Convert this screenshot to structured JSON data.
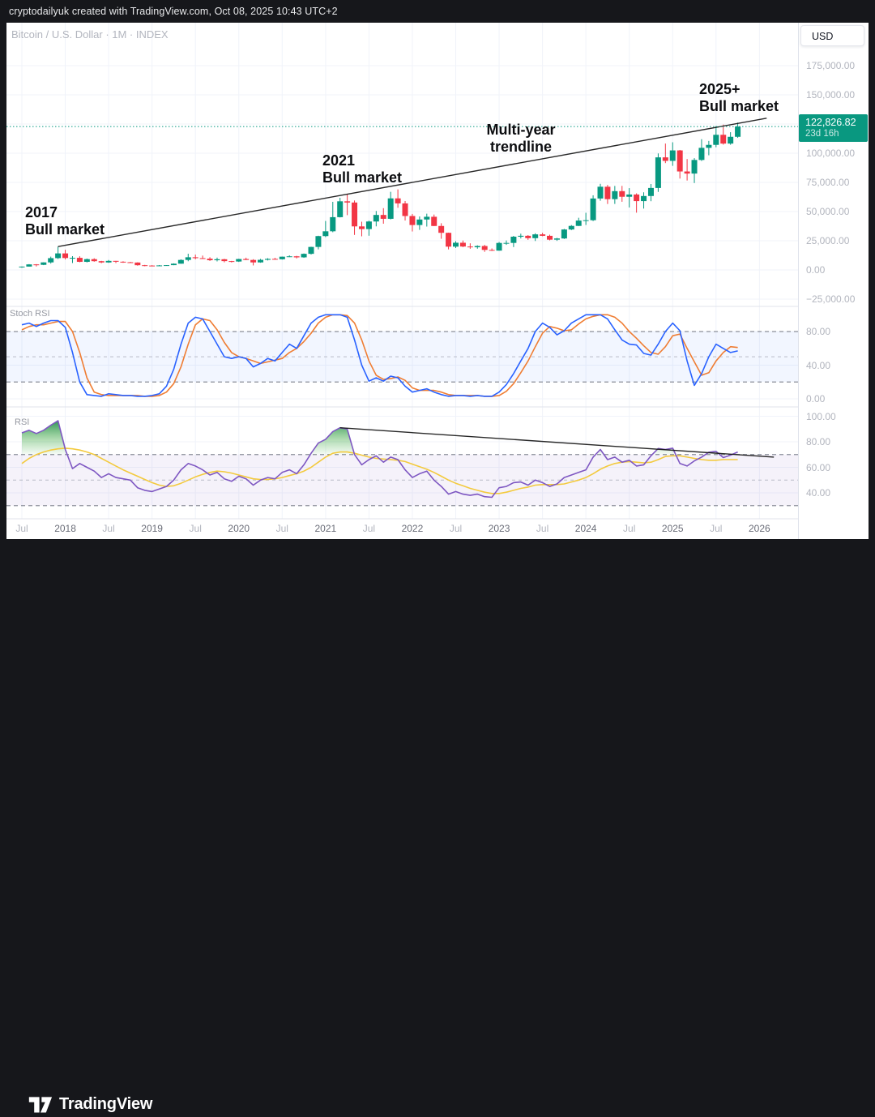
{
  "top_bar": {
    "attribution": "cryptodailyuk created with TradingView.com, Oct 08, 2025 10:43 UTC+2"
  },
  "header": {
    "symbol_title": "Bitcoin / U.S. Dollar · 1M · INDEX"
  },
  "price_scale": {
    "currency_button": "USD",
    "labels": [
      {
        "text": "175,000.00",
        "value": 175000
      },
      {
        "text": "150,000.00",
        "value": 150000
      },
      {
        "text": "100,000.00",
        "value": 100000
      },
      {
        "text": "75,000.00",
        "value": 75000
      },
      {
        "text": "50,000.00",
        "value": 50000
      },
      {
        "text": "25,000.00",
        "value": 25000
      },
      {
        "text": "0.00",
        "value": 0
      },
      {
        "text": "−25,000.00",
        "value": -25000
      }
    ],
    "price_badge": {
      "price": "122,826.82",
      "countdown": "23d 16h",
      "color": "#099880"
    }
  },
  "stoch_axis_labels": [
    {
      "text": "80.00",
      "value": 80
    },
    {
      "text": "40.00",
      "value": 40
    },
    {
      "text": "0.00",
      "value": 0
    }
  ],
  "rsi_axis_labels": [
    {
      "text": "100.00",
      "value": 100
    },
    {
      "text": "80.00",
      "value": 80
    },
    {
      "text": "60.00",
      "value": 60
    },
    {
      "text": "40.00",
      "value": 40
    }
  ],
  "time_axis": [
    {
      "text": "Jul",
      "m": 0,
      "major": false
    },
    {
      "text": "2018",
      "m": 6,
      "major": true
    },
    {
      "text": "Jul",
      "m": 12,
      "major": false
    },
    {
      "text": "2019",
      "m": 18,
      "major": true
    },
    {
      "text": "Jul",
      "m": 24,
      "major": false
    },
    {
      "text": "2020",
      "m": 30,
      "major": true
    },
    {
      "text": "Jul",
      "m": 36,
      "major": false
    },
    {
      "text": "2021",
      "m": 42,
      "major": true
    },
    {
      "text": "Jul",
      "m": 48,
      "major": false
    },
    {
      "text": "2022",
      "m": 54,
      "major": true
    },
    {
      "text": "Jul",
      "m": 60,
      "major": false
    },
    {
      "text": "2023",
      "m": 66,
      "major": true
    },
    {
      "text": "Jul",
      "m": 72,
      "major": false
    },
    {
      "text": "2024",
      "m": 78,
      "major": true
    },
    {
      "text": "Jul",
      "m": 84,
      "major": false
    },
    {
      "text": "2025",
      "m": 90,
      "major": true
    },
    {
      "text": "Jul",
      "m": 96,
      "major": false
    },
    {
      "text": "2026",
      "m": 102,
      "major": true
    }
  ],
  "annotations": {
    "a2017": {
      "line1": "2017",
      "line2": "Bull market"
    },
    "a2021": {
      "line1": "2021",
      "line2": "Bull market"
    },
    "amulti": {
      "line1": "Multi-year",
      "line2": "trendline"
    },
    "a2025": {
      "line1": "2025+",
      "line2": "Bull market"
    }
  },
  "panels": {
    "stoch_label": "Stoch RSI",
    "rsi_label": "RSI"
  },
  "footer": {
    "logo_text": "TradingView"
  },
  "colors": {
    "up": "#089981",
    "down": "#f23645",
    "stoch_k": "#2962ff",
    "stoch_d": "#ef7d33",
    "rsi_line": "#7e57c2",
    "rsi_ma": "#f3ca3e",
    "trendline": "#111111",
    "price_line": "#089981",
    "grid": "#f0f3fa",
    "separator": "#e0e3eb",
    "band_dash_strong": "#8a8e99",
    "band_dash_mid": "#b8bbc6",
    "stoch_band_fill": "rgba(41,98,255,0.06)",
    "rsi_band_fill": "rgba(126,87,194,0.08)"
  },
  "chart_data": {
    "type": "candlestick",
    "title": "Bitcoin / U.S. Dollar, 1 month, INDEX",
    "start_month": "2017-07",
    "end_month": "2025-10",
    "current_price": 122826.82,
    "price_axis_range": [
      -40000,
      195000
    ],
    "o": [
      2480,
      2875,
      4735,
      4360,
      6450,
      10100,
      14150,
      10200,
      10360,
      6940,
      9240,
      7500,
      6400,
      7750,
      7030,
      6600,
      6340,
      4040,
      3740,
      3460,
      3860,
      4100,
      5350,
      8560,
      10850,
      10090,
      9630,
      8310,
      9150,
      7560,
      7200,
      9350,
      8550,
      6440,
      8660,
      9460,
      9140,
      11350,
      11650,
      10780,
      13800,
      19700,
      28990,
      33110,
      45200,
      58800,
      57750,
      37300,
      35000,
      41500,
      47100,
      43800,
      61300,
      57000,
      46200,
      38480,
      43200,
      45540,
      37650,
      31790,
      19940,
      23300,
      20050,
      19420,
      20490,
      17160,
      16540,
      23130,
      23140,
      28470,
      29250,
      27220,
      30470,
      29230,
      25930,
      26960,
      34650,
      37710,
      42280,
      42580,
      61200,
      71280,
      60640,
      67500,
      62680,
      64620,
      58970,
      63330,
      70220,
      96440,
      93430,
      102400,
      84350,
      82550,
      94210,
      104600,
      107140,
      115760,
      108240,
      114050
    ],
    "h": [
      2920,
      4980,
      4980,
      6500,
      11400,
      19900,
      17250,
      11790,
      11700,
      9760,
      9990,
      7780,
      8500,
      7760,
      7410,
      6940,
      6540,
      4310,
      4060,
      4180,
      4130,
      5620,
      9060,
      13880,
      13130,
      12280,
      10890,
      10540,
      9520,
      7740,
      9550,
      10500,
      9180,
      9440,
      10070,
      10380,
      11440,
      12480,
      12050,
      14100,
      19860,
      29300,
      41950,
      58350,
      61800,
      64900,
      59500,
      41320,
      42200,
      50500,
      52920,
      66930,
      69000,
      59040,
      47980,
      45820,
      48190,
      47440,
      40000,
      31960,
      24670,
      25200,
      22800,
      21080,
      21470,
      18390,
      23960,
      25250,
      29180,
      31050,
      29820,
      31390,
      31800,
      30180,
      27480,
      35150,
      38410,
      44700,
      48970,
      63930,
      73800,
      72800,
      71950,
      71990,
      70080,
      65600,
      66500,
      73620,
      99800,
      108270,
      109360,
      102800,
      95000,
      95770,
      112000,
      110530,
      123230,
      124500,
      118000,
      126200
    ],
    "l": [
      1830,
      2840,
      2970,
      4110,
      5430,
      9380,
      9000,
      5920,
      6600,
      6430,
      7040,
      5780,
      6070,
      5880,
      6100,
      6200,
      3650,
      3150,
      3350,
      3350,
      3670,
      4060,
      5330,
      7450,
      9090,
      9350,
      7700,
      7300,
      6520,
      6430,
      6850,
      8410,
      3850,
      6160,
      8110,
      8830,
      8900,
      11000,
      9830,
      10380,
      13200,
      17600,
      28150,
      32320,
      44950,
      46930,
      30000,
      28800,
      29300,
      37330,
      39600,
      43280,
      53250,
      42330,
      32950,
      34300,
      37160,
      37600,
      26700,
      17600,
      18780,
      19520,
      18130,
      18190,
      15480,
      16260,
      16490,
      21450,
      19570,
      26950,
      25810,
      24800,
      28860,
      25350,
      24900,
      26540,
      34100,
      37610,
      38500,
      41880,
      59320,
      56500,
      56550,
      58400,
      53500,
      49050,
      52550,
      58870,
      66840,
      91530,
      89170,
      78260,
      76600,
      74440,
      93370,
      98240,
      105110,
      107360,
      107270,
      113160
    ],
    "c": [
      2875,
      4735,
      4360,
      6450,
      10100,
      14150,
      10200,
      10360,
      6940,
      9240,
      7500,
      6400,
      7750,
      7030,
      6600,
      6340,
      4040,
      3740,
      3460,
      3860,
      4100,
      5350,
      8560,
      10850,
      10090,
      9630,
      8310,
      9150,
      7560,
      7200,
      9350,
      8550,
      6440,
      8660,
      9460,
      9140,
      11350,
      11650,
      10780,
      13800,
      19700,
      28990,
      33110,
      45200,
      58800,
      57750,
      37300,
      35000,
      41500,
      47100,
      43800,
      61300,
      57000,
      46200,
      38480,
      43200,
      45540,
      37650,
      31790,
      19940,
      23300,
      20050,
      19420,
      20490,
      17160,
      16540,
      23130,
      23140,
      28470,
      29250,
      27220,
      30470,
      29230,
      25930,
      26960,
      34650,
      37710,
      42280,
      42580,
      61200,
      71280,
      60640,
      67500,
      62680,
      64620,
      58970,
      63330,
      70220,
      96440,
      93430,
      102400,
      84350,
      82550,
      94210,
      104600,
      107140,
      115760,
      108240,
      114050,
      122827
    ],
    "stoch_rsi": {
      "levels": [
        80,
        50,
        20
      ],
      "k": [
        88,
        90,
        86,
        90,
        93,
        93,
        85,
        55,
        20,
        5,
        4,
        3,
        6,
        5,
        4,
        4,
        3,
        3,
        4,
        6,
        15,
        35,
        65,
        90,
        97,
        95,
        80,
        65,
        50,
        48,
        50,
        48,
        38,
        42,
        48,
        45,
        55,
        65,
        60,
        75,
        90,
        97,
        100,
        100,
        100,
        97,
        70,
        40,
        21,
        25,
        21,
        27,
        25,
        15,
        8,
        10,
        12,
        8,
        5,
        3,
        4,
        4,
        3,
        4,
        3,
        3,
        8,
        17,
        30,
        45,
        60,
        80,
        90,
        85,
        76,
        81,
        90,
        95,
        100,
        100,
        100,
        95,
        82,
        70,
        65,
        64,
        54,
        52,
        65,
        80,
        90,
        81,
        45,
        16,
        30,
        50,
        65,
        60,
        55,
        57
      ],
      "d": [
        82,
        86,
        88,
        88,
        90,
        92,
        92,
        80,
        55,
        25,
        8,
        5,
        4,
        4,
        4,
        4,
        4,
        3,
        3,
        4,
        8,
        18,
        38,
        65,
        88,
        95,
        93,
        82,
        67,
        55,
        50,
        48,
        45,
        42,
        44,
        46,
        48,
        55,
        60,
        68,
        78,
        90,
        97,
        100,
        100,
        99,
        90,
        70,
        45,
        28,
        23,
        24,
        26,
        22,
        13,
        10,
        10,
        10,
        8,
        5,
        4,
        4,
        4,
        4,
        3,
        3,
        4,
        9,
        18,
        31,
        45,
        62,
        78,
        86,
        84,
        81,
        82,
        89,
        95,
        98,
        100,
        100,
        97,
        90,
        80,
        72,
        63,
        55,
        53,
        62,
        75,
        77,
        60,
        44,
        28,
        31,
        45,
        55,
        62,
        61
      ]
    },
    "rsi": {
      "levels": [
        70,
        50,
        30
      ],
      "overbought_fill_above": 70,
      "values": [
        87,
        89,
        86.5,
        89,
        93,
        96.5,
        74,
        59,
        63,
        60,
        57,
        52,
        55,
        52,
        51,
        50,
        44,
        42,
        41,
        43,
        45,
        50,
        58,
        63,
        61,
        58,
        54,
        56,
        51,
        49,
        53,
        51,
        46,
        50,
        52,
        51,
        56,
        58,
        55,
        62,
        71,
        79,
        82,
        88,
        91,
        90,
        70,
        62,
        66,
        69,
        64,
        68,
        66,
        58,
        52,
        55,
        57,
        50,
        45,
        39,
        41,
        39,
        38,
        39,
        37,
        36.5,
        44,
        45,
        48,
        48.5,
        46,
        50,
        48,
        45,
        47,
        52,
        54,
        56,
        58,
        68,
        74,
        66,
        68,
        64,
        65.5,
        61,
        62,
        69,
        74.7,
        74,
        75,
        63,
        61,
        65,
        68,
        71.8,
        72.5,
        67.6,
        69.5,
        72
      ],
      "ma": [
        63,
        67,
        70,
        72,
        73.5,
        74.5,
        75,
        74.5,
        73.5,
        72,
        70,
        67,
        64,
        61,
        58,
        55.5,
        53,
        50.5,
        48,
        46,
        45,
        45.5,
        47.5,
        50,
        52.5,
        54.5,
        56,
        57,
        56.5,
        55.5,
        54,
        52.5,
        51,
        50.5,
        50.5,
        51,
        52,
        53.5,
        55,
        57,
        60,
        64,
        68,
        71,
        72,
        72,
        71,
        69.5,
        68,
        67,
        66.5,
        66,
        65.5,
        64.5,
        62.5,
        60.5,
        58.5,
        56,
        53,
        50,
        47.5,
        45.5,
        43.5,
        42,
        40.5,
        39.5,
        39.5,
        40.5,
        42,
        43.5,
        44.5,
        46,
        46.5,
        46.5,
        46.5,
        47,
        48.5,
        50,
        52,
        55,
        58.5,
        61,
        63,
        64,
        64.5,
        64,
        63.5,
        64,
        66,
        68.5,
        69,
        69,
        68,
        67,
        66,
        65.5,
        65.5,
        66,
        66,
        66
      ]
    },
    "trendlines": [
      {
        "panel": "price",
        "from_month": 5,
        "from_value": 20000,
        "to_month": 103,
        "to_value": 130000
      },
      {
        "panel": "rsi",
        "from_month": 44,
        "from_value": 91,
        "to_month": 104,
        "to_value": 68
      }
    ]
  }
}
